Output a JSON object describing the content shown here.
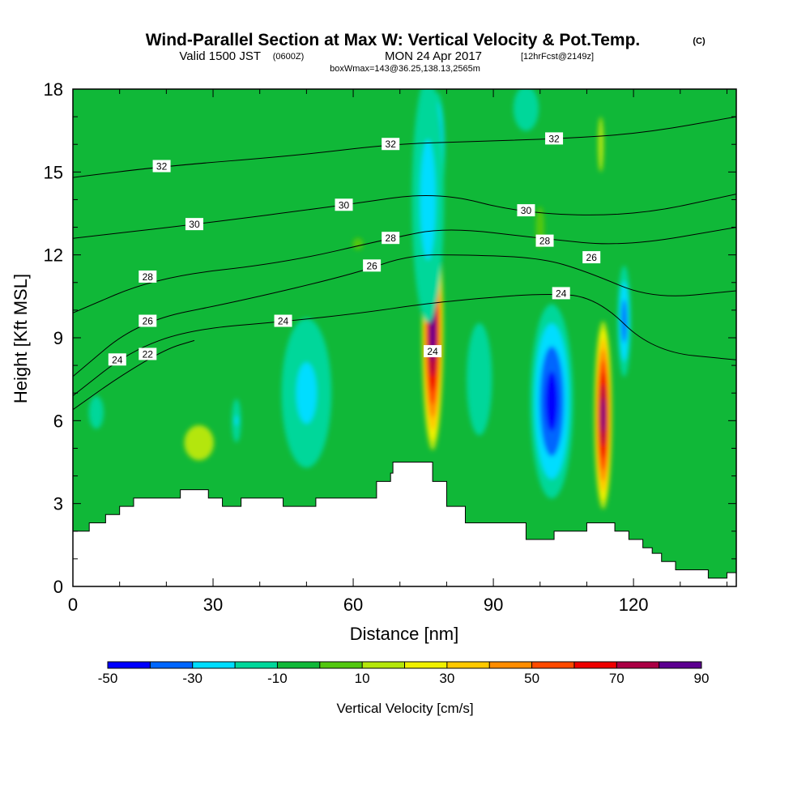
{
  "header": {
    "title": "Wind-Parallel Section at Max W: Vertical Velocity & Pot.Temp.",
    "copyright": "(C)",
    "valid_prefix": "Valid 1500 JST",
    "utc_time": "(0600Z)",
    "valid_date": "MON 24 Apr 2017",
    "forecast_info": "[12hrFcst@2149z]",
    "boxinfo": "boxWmax=143@36.25,138.13,2565m"
  },
  "chart_data": {
    "type": "heatmap",
    "title": "Wind-Parallel Section at Max W: Vertical Velocity & Pot.Temp.",
    "xlabel": "Distance [nm]",
    "ylabel": "Height [Kft MSL]",
    "xlim": [
      0,
      142
    ],
    "ylim": [
      0,
      18
    ],
    "xticks": [
      0,
      30,
      60,
      90,
      120
    ],
    "yticks": [
      0,
      3,
      6,
      9,
      12,
      15,
      18
    ],
    "colorbar": {
      "label": "Vertical Velocity [cm/s]",
      "levels": [
        -50,
        -40,
        -30,
        -20,
        -10,
        0,
        10,
        20,
        30,
        40,
        50,
        60,
        70,
        80,
        90
      ],
      "tick_labels": [
        "-50",
        "-30",
        "-10",
        "10",
        "30",
        "50",
        "70",
        "90"
      ],
      "colors": [
        "#0000ff",
        "#0066ff",
        "#00ddff",
        "#00d79a",
        "#10b838",
        "#52c70f",
        "#b4e60a",
        "#f0f000",
        "#ffc800",
        "#ff8c00",
        "#ff4a00",
        "#ee0000",
        "#aa0044",
        "#5c0090"
      ]
    },
    "terrain": [
      [
        0,
        2.0
      ],
      [
        3.5,
        2.0
      ],
      [
        3.5,
        2.3
      ],
      [
        7,
        2.3
      ],
      [
        7,
        2.6
      ],
      [
        10,
        2.6
      ],
      [
        10,
        2.9
      ],
      [
        13,
        2.9
      ],
      [
        13,
        3.2
      ],
      [
        23,
        3.2
      ],
      [
        23,
        3.5
      ],
      [
        29,
        3.5
      ],
      [
        29,
        3.2
      ],
      [
        32,
        3.2
      ],
      [
        32,
        2.9
      ],
      [
        36,
        2.9
      ],
      [
        36,
        3.2
      ],
      [
        45,
        3.2
      ],
      [
        45,
        2.9
      ],
      [
        52,
        2.9
      ],
      [
        52,
        3.2
      ],
      [
        65,
        3.2
      ],
      [
        65,
        3.8
      ],
      [
        68,
        3.8
      ],
      [
        68,
        4.1
      ],
      [
        68.5,
        4.1
      ],
      [
        68.5,
        4.5
      ],
      [
        77,
        4.5
      ],
      [
        77,
        3.8
      ],
      [
        80,
        3.8
      ],
      [
        80,
        2.9
      ],
      [
        84,
        2.9
      ],
      [
        84,
        2.3
      ],
      [
        97,
        2.3
      ],
      [
        97,
        1.7
      ],
      [
        103,
        1.7
      ],
      [
        103,
        2.0
      ],
      [
        110,
        2.0
      ],
      [
        110,
        2.3
      ],
      [
        116,
        2.3
      ],
      [
        116,
        2.0
      ],
      [
        119,
        2.0
      ],
      [
        119,
        1.7
      ],
      [
        122,
        1.7
      ],
      [
        122,
        1.4
      ],
      [
        124,
        1.4
      ],
      [
        124,
        1.2
      ],
      [
        126,
        1.2
      ],
      [
        126,
        0.9
      ],
      [
        129,
        0.9
      ],
      [
        129,
        0.6
      ],
      [
        136,
        0.6
      ],
      [
        136,
        0.3
      ],
      [
        140,
        0.3
      ],
      [
        140,
        0.5
      ],
      [
        142,
        0.5
      ]
    ],
    "vv_cells": [
      {
        "x": 77,
        "y": 9.3,
        "rx": 2.4,
        "ry": 4.6,
        "v": 88
      },
      {
        "x": 113.5,
        "y": 6.2,
        "rx": 2.0,
        "ry": 3.6,
        "v": 82
      },
      {
        "x": 78,
        "y": 15.8,
        "rx": 1.8,
        "ry": 2.3,
        "v": -52
      },
      {
        "x": 76,
        "y": 14.0,
        "rx": 4.6,
        "ry": 6.0,
        "v": -25
      },
      {
        "x": 102.5,
        "y": 6.7,
        "rx": 5.2,
        "ry": 4.0,
        "v": -45
      },
      {
        "x": 118,
        "y": 9.6,
        "rx": 1.7,
        "ry": 2.4,
        "v": -36
      },
      {
        "x": 50,
        "y": 7.0,
        "rx": 7.5,
        "ry": 3.8,
        "v": -23
      },
      {
        "x": 35,
        "y": 6.0,
        "rx": 1.5,
        "ry": 1.2,
        "v": -20
      },
      {
        "x": 87,
        "y": 7.5,
        "rx": 6.0,
        "ry": 4.5,
        "v": -14
      },
      {
        "x": 97,
        "y": 17.3,
        "rx": 6.0,
        "ry": 1.8,
        "v": -14
      },
      {
        "x": 5,
        "y": 6.3,
        "rx": 4.0,
        "ry": 1.5,
        "v": -13
      },
      {
        "x": 113,
        "y": 16.0,
        "rx": 1.2,
        "ry": 2.0,
        "v": 15
      },
      {
        "x": 27,
        "y": 5.2,
        "rx": 8.0,
        "ry": 1.6,
        "v": 13
      },
      {
        "x": 61,
        "y": 12.4,
        "rx": 7.5,
        "ry": 1.4,
        "v": 6
      },
      {
        "x": 100,
        "y": 13.0,
        "rx": 6.0,
        "ry": 5.0,
        "v": 5
      }
    ],
    "theta_contours": [
      {
        "label": "22",
        "label_at": [
          16,
          8.4
        ],
        "points": [
          [
            0,
            6.4
          ],
          [
            10,
            7.6
          ],
          [
            20,
            8.6
          ],
          [
            26,
            8.9
          ]
        ]
      },
      {
        "label": "24",
        "label_at": [
          9.5,
          8.2
        ],
        "points": [
          [
            0,
            6.9
          ],
          [
            12,
            8.5
          ],
          [
            25,
            9.3
          ],
          [
            46,
            9.6
          ],
          [
            62,
            9.9
          ],
          [
            74,
            10.2
          ],
          [
            85,
            10.4
          ],
          [
            100,
            10.6
          ],
          [
            112,
            10.5
          ],
          [
            124,
            8.5
          ],
          [
            142,
            8.2
          ]
        ]
      },
      {
        "label": "26",
        "label_at": [
          16,
          9.6
        ],
        "points": [
          [
            0,
            7.6
          ],
          [
            14,
            9.6
          ],
          [
            35,
            10.3
          ],
          [
            60,
            11.3
          ],
          [
            72,
            12.0
          ],
          [
            84,
            12.0
          ],
          [
            100,
            11.9
          ],
          [
            110,
            11.4
          ],
          [
            124,
            10.4
          ],
          [
            142,
            10.7
          ]
        ]
      },
      {
        "label": "28",
        "label_at": [
          16,
          11.2
        ],
        "points": [
          [
            0,
            9.9
          ],
          [
            18,
            11.2
          ],
          [
            45,
            11.7
          ],
          [
            68,
            12.6
          ],
          [
            80,
            13.0
          ],
          [
            100,
            12.6
          ],
          [
            118,
            12.3
          ],
          [
            142,
            13.0
          ]
        ]
      },
      {
        "label": "30",
        "label_at": [
          26,
          13.1
        ],
        "points": [
          [
            0,
            12.6
          ],
          [
            26,
            13.1
          ],
          [
            58,
            13.8
          ],
          [
            78,
            14.3
          ],
          [
            96,
            13.5
          ],
          [
            120,
            13.4
          ],
          [
            142,
            14.2
          ]
        ]
      },
      {
        "label": "32",
        "label_at": [
          19,
          15.2
        ],
        "points": [
          [
            0,
            14.8
          ],
          [
            19,
            15.2
          ],
          [
            48,
            15.6
          ],
          [
            68,
            16.0
          ],
          [
            84,
            16.1
          ],
          [
            104,
            16.2
          ],
          [
            122,
            16.4
          ],
          [
            142,
            17.0
          ]
        ]
      }
    ],
    "contour_labels": [
      {
        "label": "24",
        "x": 45,
        "y": 9.6
      },
      {
        "label": "26",
        "x": 64,
        "y": 11.6
      },
      {
        "label": "28",
        "x": 68,
        "y": 12.6
      },
      {
        "label": "30",
        "x": 58,
        "y": 13.8
      },
      {
        "label": "32",
        "x": 68,
        "y": 16.0
      },
      {
        "label": "24",
        "x": 104.5,
        "y": 10.6
      },
      {
        "label": "28",
        "x": 101,
        "y": 12.5
      },
      {
        "label": "30",
        "x": 97,
        "y": 13.6
      },
      {
        "label": "26",
        "x": 111,
        "y": 11.9
      },
      {
        "label": "32",
        "x": 103,
        "y": 16.2
      },
      {
        "label": "24",
        "x": 77,
        "y": 8.5
      }
    ]
  }
}
